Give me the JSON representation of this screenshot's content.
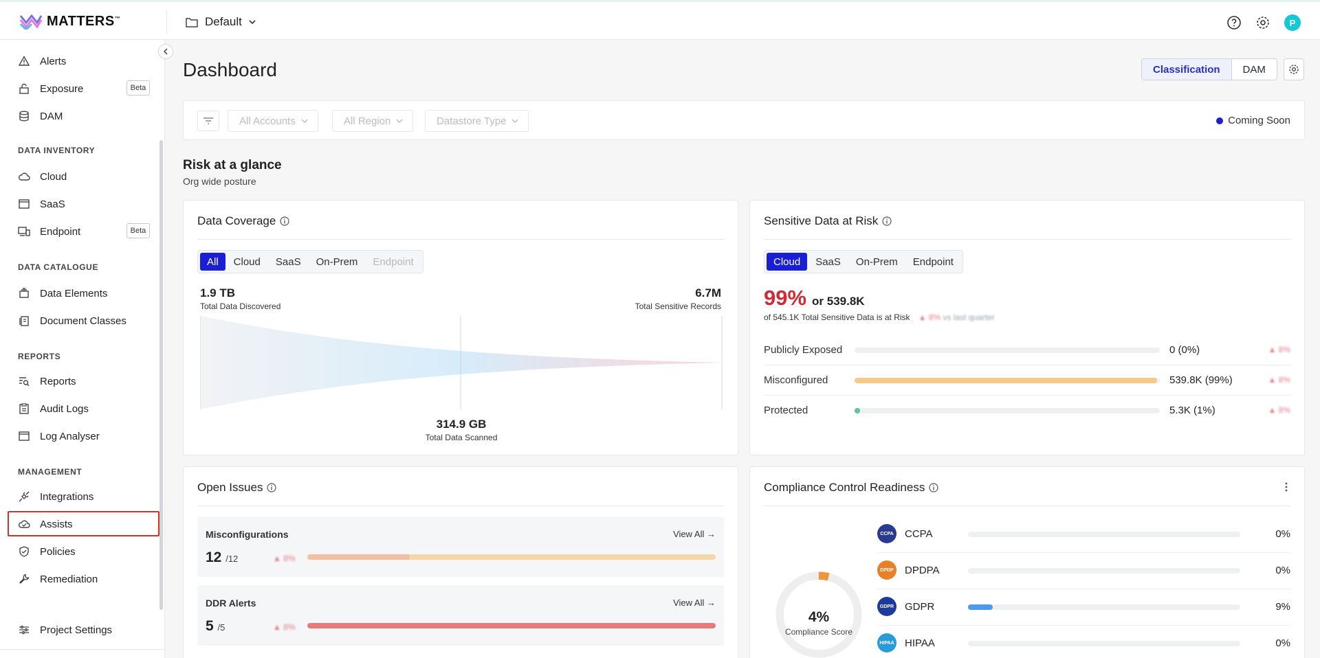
{
  "app": {
    "name": "MATTERS",
    "tm": "™"
  },
  "project": {
    "name": "Default"
  },
  "header": {
    "avatar_initial": "P"
  },
  "sidebar": {
    "items_top": [
      {
        "label": "Alerts"
      },
      {
        "label": "Exposure",
        "badge": "Beta"
      },
      {
        "label": "DAM"
      }
    ],
    "sections": {
      "inventory": "DATA INVENTORY",
      "catalogue": "DATA CATALOGUE",
      "reports": "REPORTS",
      "management": "MANAGEMENT"
    },
    "inventory": [
      {
        "label": "Cloud"
      },
      {
        "label": "SaaS"
      },
      {
        "label": "Endpoint",
        "badge": "Beta"
      }
    ],
    "catalogue": [
      {
        "label": "Data Elements"
      },
      {
        "label": "Document Classes"
      }
    ],
    "reports": [
      {
        "label": "Reports"
      },
      {
        "label": "Audit Logs"
      },
      {
        "label": "Log Analyser"
      }
    ],
    "management": [
      {
        "label": "Integrations"
      },
      {
        "label": "Assists"
      },
      {
        "label": "Policies"
      },
      {
        "label": "Remediation"
      }
    ],
    "footer": {
      "label": "Project Settings"
    }
  },
  "main": {
    "title": "Dashboard",
    "view_toggle": {
      "classification": "Classification",
      "dam": "DAM"
    },
    "filters": {
      "accounts": "All Accounts",
      "region": "All Region",
      "datastore": "Datastore Type",
      "coming_soon": "Coming Soon"
    },
    "risk": {
      "title": "Risk at a glance",
      "subtitle": "Org wide posture"
    }
  },
  "data_coverage": {
    "title": "Data Coverage",
    "tabs": [
      "All",
      "Cloud",
      "SaaS",
      "On-Prem",
      "Endpoint"
    ],
    "discovered_value": "1.9 TB",
    "discovered_label": "Total Data Discovered",
    "sensitive_value": "6.7M",
    "sensitive_label": "Total Sensitive Records",
    "scanned_value": "314.9 GB",
    "scanned_label": "Total Data Scanned"
  },
  "sensitive_risk": {
    "title": "Sensitive Data at Risk",
    "tabs": [
      "Cloud",
      "SaaS",
      "On-Prem",
      "Endpoint"
    ],
    "pct": "99%",
    "or_value": "or 539.8K",
    "summary": "of 545.1K Total Sensitive Data is at Risk",
    "change": "▲ 8%",
    "change_suffix": "vs last quarter",
    "rows": [
      {
        "label": "Publicly Exposed",
        "value": "0 (0%)",
        "change": "▲ 8%",
        "level": 0
      },
      {
        "label": "Misconfigured",
        "value": "539.8K (99%)",
        "change": "▲ 8%",
        "level": 0.99
      },
      {
        "label": "Protected",
        "value": "5.3K (1%)",
        "change": "▲ 8%",
        "level": 0.01
      }
    ],
    "colors": {
      "misconfigured": "#f6c98e",
      "protected": "#5cc49a"
    }
  },
  "open_issues": {
    "title": "Open Issues",
    "items": [
      {
        "name": "Misconfigurations",
        "count": "12",
        "total": "/12",
        "change": "▲ 8%",
        "view": "View All →"
      },
      {
        "name": "DDR Alerts",
        "count": "5",
        "total": "/5",
        "change": "▲ 8%",
        "view": "View All →"
      }
    ]
  },
  "compliance": {
    "title": "Compliance Control Readiness",
    "score_value": "4%",
    "score_label": "Compliance Score",
    "score_level": 0.04,
    "rows": [
      {
        "name": "CCPA",
        "pct": "0%",
        "level": 0,
        "color": "#2a3b8f"
      },
      {
        "name": "DPDPA",
        "pct": "0%",
        "level": 0,
        "color": "#e8802a"
      },
      {
        "name": "GDPR",
        "pct": "9%",
        "level": 0.09,
        "color": "#1e3a9c"
      },
      {
        "name": "HIPAA",
        "pct": "0%",
        "level": 0,
        "color": "#2a9bd8"
      }
    ]
  }
}
